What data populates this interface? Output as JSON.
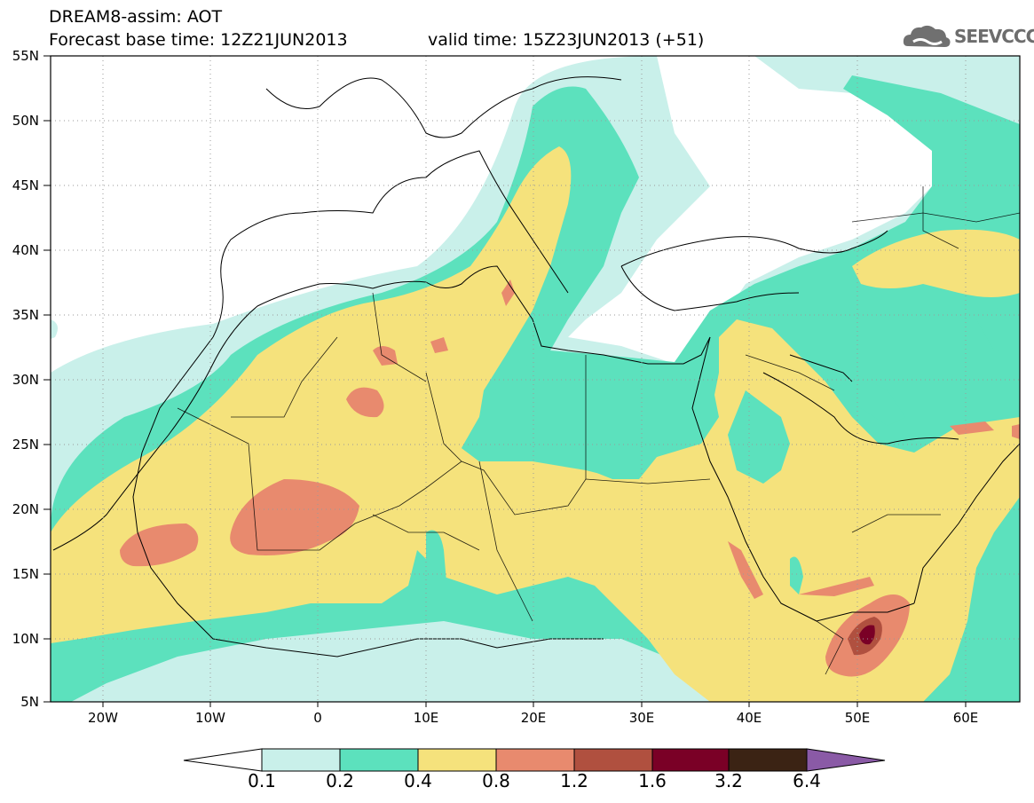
{
  "title": {
    "line1": "DREAM8-assim: AOT",
    "line2": "Forecast base time: 12Z21JUN2013",
    "line3": "valid time: 15Z23JUN2013 (+51)"
  },
  "logo": {
    "text": "SEEVCCC",
    "icon": "cloud-icon"
  },
  "axes": {
    "lat_labels": [
      "55N",
      "50N",
      "45N",
      "40N",
      "35N",
      "30N",
      "25N",
      "20N",
      "15N",
      "10N",
      "5N"
    ],
    "lon_labels": [
      "20W",
      "10W",
      "0",
      "10E",
      "20E",
      "30E",
      "40E",
      "50E",
      "60E"
    ]
  },
  "colorbar": {
    "thresholds": [
      "0.1",
      "0.2",
      "0.4",
      "0.8",
      "1.2",
      "1.6",
      "3.2",
      "6.4"
    ],
    "colors": [
      "#ffffff",
      "#c9f0ea",
      "#5ce1bd",
      "#f5e27c",
      "#e88a6e",
      "#b0503f",
      "#7a0026",
      "#3b2314",
      "#8a5aa6"
    ]
  },
  "colors": {
    "c1": "#c9f0ea",
    "c2": "#5ce1bd",
    "c3": "#f5e27c",
    "c4": "#e88a6e",
    "c5": "#b0503f",
    "c6": "#7a0026"
  }
}
